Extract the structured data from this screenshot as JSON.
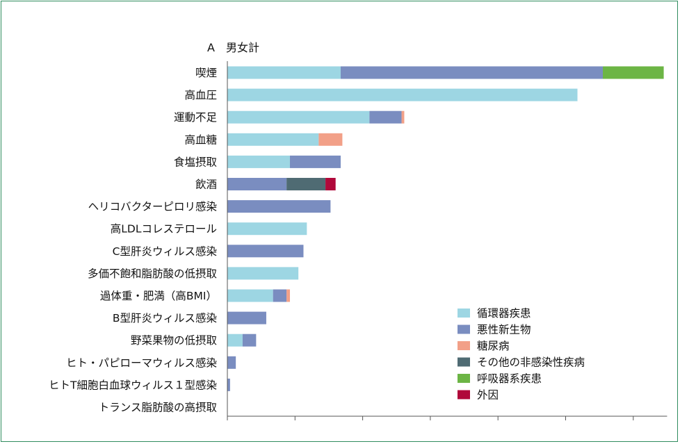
{
  "chart_data": {
    "type": "bar",
    "orientation": "horizontal",
    "stacked": true,
    "title": "A　男女計",
    "categories": [
      "喫煙",
      "高血圧",
      "運動不足",
      "高血糖",
      "食塩摂取",
      "飲酒",
      "ヘリコバクターピロリ感染",
      "高LDLコレステロール",
      "C型肝炎ウィルス感染",
      "多価不飽和脂肪酸の低摂取",
      "過体重・肥満（高BMI）",
      "B型肝炎ウィルス感染",
      "野菜果物の低摂取",
      "ヒト・パピローマウィルス感染",
      "ヒトT細胞白血球ウィルス１型感染",
      "トランス脂肪酸の高摂取"
    ],
    "series": [
      {
        "name": "循環器疾患",
        "color": "#9dd6e3",
        "values": [
          33.5,
          103.5,
          42,
          27,
          18.5,
          0,
          0,
          23.5,
          0,
          21,
          13.5,
          0,
          4.5,
          0,
          0,
          0
        ]
      },
      {
        "name": "悪性新生物",
        "color": "#7a8dc0",
        "values": [
          77.5,
          0,
          9.5,
          0,
          15,
          17.5,
          30.5,
          0,
          22.5,
          0,
          4,
          11.5,
          4,
          2.5,
          0.8,
          0
        ]
      },
      {
        "name": "糖尿病",
        "color": "#f2a088",
        "values": [
          0,
          0,
          0.8,
          7,
          0,
          0,
          0,
          0,
          0,
          0,
          1,
          0,
          0,
          0,
          0,
          0
        ]
      },
      {
        "name": "その他の非感染性疾病",
        "color": "#4f6b73",
        "values": [
          0,
          0,
          0,
          0,
          0,
          11.5,
          0,
          0,
          0,
          0,
          0,
          0,
          0,
          0,
          0,
          0
        ]
      },
      {
        "name": "呼吸器系疾患",
        "color": "#6cb545",
        "values": [
          18,
          0,
          0,
          0,
          0,
          0,
          0,
          0,
          0,
          0,
          0,
          0,
          0,
          0,
          0,
          0
        ]
      },
      {
        "name": "外因",
        "color": "#b0083a",
        "values": [
          0,
          0,
          0,
          0,
          0,
          3,
          0,
          0,
          0,
          0,
          0,
          0,
          0,
          0,
          0,
          0
        ]
      }
    ],
    "xlim": [
      0,
      130
    ],
    "xticks": [
      0,
      20,
      40,
      60,
      80,
      100,
      120
    ],
    "xtick_labels_shown": false,
    "grid": false,
    "legend_position": "bottom-right"
  },
  "colors": {
    "frame_border": "#2f8c5e",
    "axis": "#555555"
  }
}
